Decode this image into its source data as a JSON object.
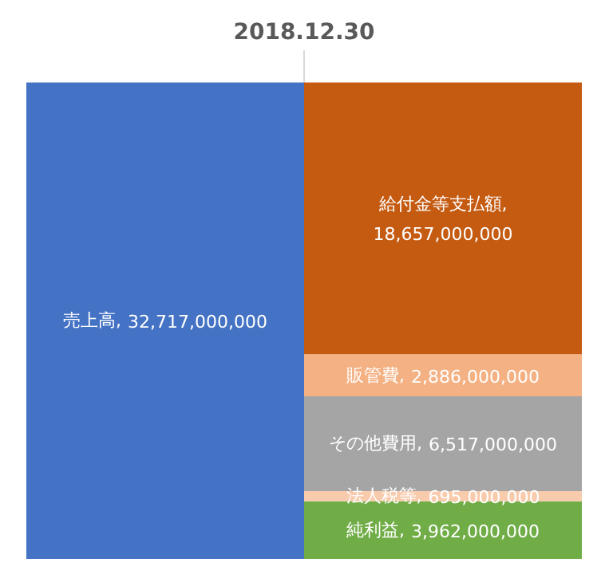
{
  "chart_data": {
    "type": "bar",
    "title": "2018.12.30",
    "categories": [
      null,
      null
    ],
    "stacked": true,
    "grid": "x",
    "series": [
      {
        "name": "売上高,",
        "color": "#4472c4",
        "values": [
          32717000000,
          null
        ],
        "value_labels": [
          "32,717,000,000",
          null
        ]
      },
      {
        "name": "純利益,",
        "color": "#70ad47",
        "values": [
          null,
          3962000000
        ],
        "value_labels": [
          null,
          "3,962,000,000"
        ]
      },
      {
        "name": "法人税等,",
        "color": "#f8cbad",
        "values": [
          null,
          695000000
        ],
        "value_labels": [
          null,
          "695,000,000"
        ]
      },
      {
        "name": "その他費用,",
        "color": "#a5a5a5",
        "values": [
          null,
          6517000000
        ],
        "value_labels": [
          null,
          "6,517,000,000"
        ]
      },
      {
        "name": "販管費,",
        "color": "#f4b183",
        "values": [
          null,
          2886000000
        ],
        "value_labels": [
          null,
          "2,886,000,000"
        ]
      },
      {
        "name": "給付金等支払額,",
        "color": "#c55a11",
        "values": [
          null,
          18657000000
        ],
        "value_labels": [
          null,
          "18,657,000,000"
        ]
      }
    ]
  }
}
